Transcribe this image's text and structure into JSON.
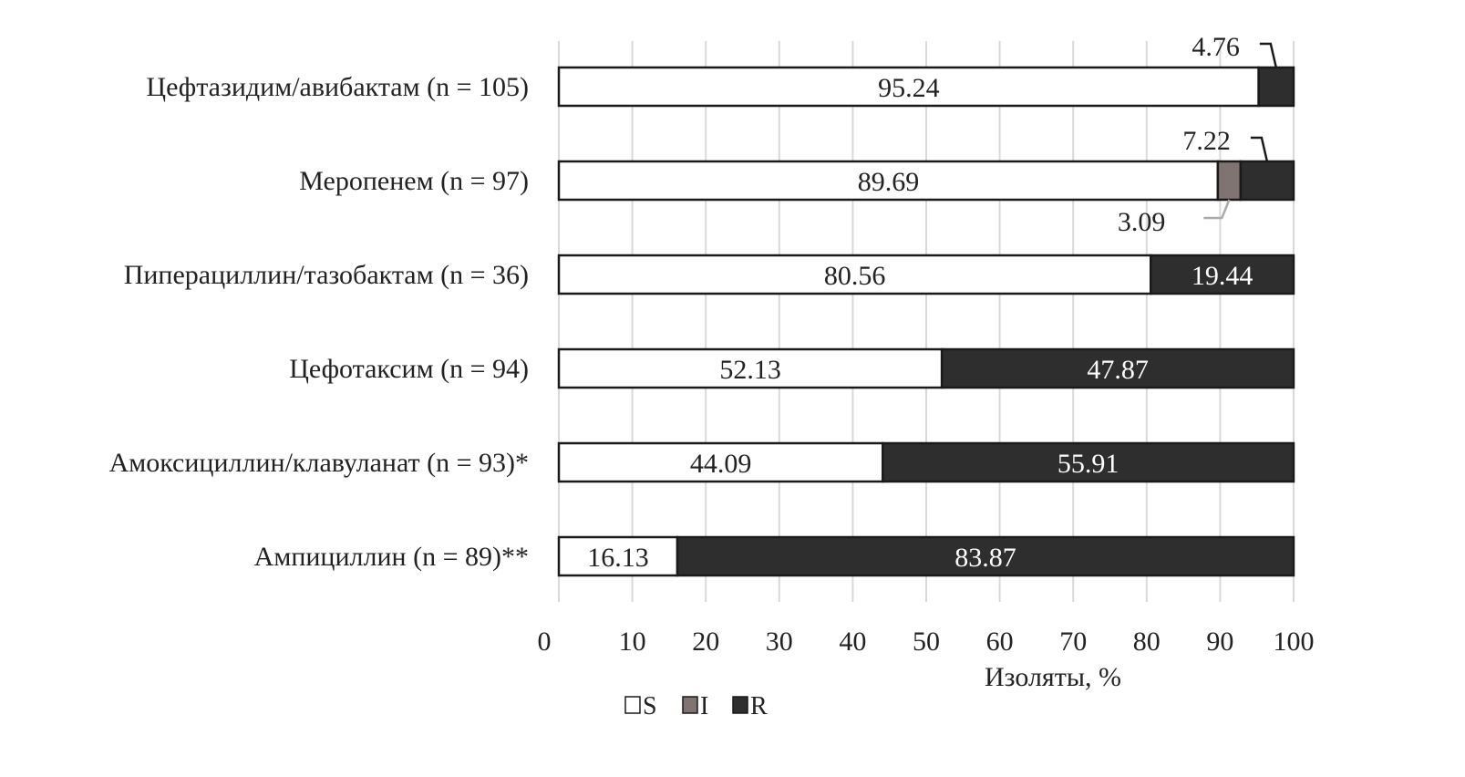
{
  "chart_data": {
    "type": "bar",
    "orientation": "horizontal",
    "stacked": true,
    "categories": [
      "Цефтазидим/авибактам (n = 105)",
      "Меропенем (n = 97)",
      "Пиперациллин/тазобактам (n = 36)",
      "Цефотаксим (n = 94)",
      "Амоксициллин/клавуланат (n = 93)*",
      "Ампициллин (n = 89)**"
    ],
    "series": [
      {
        "name": "S",
        "color": "#ffffff",
        "values": [
          95.24,
          89.69,
          80.56,
          52.13,
          44.09,
          16.13
        ]
      },
      {
        "name": "I",
        "color": "#7f7472",
        "values": [
          0,
          3.09,
          0,
          0,
          0,
          0
        ]
      },
      {
        "name": "R",
        "color": "#2e2e2e",
        "values": [
          4.76,
          7.22,
          19.44,
          47.87,
          55.91,
          83.87
        ]
      }
    ],
    "data_labels": [
      {
        "S": "95.24",
        "I": "",
        "R": "4.76"
      },
      {
        "S": "89.69",
        "I": "3.09",
        "R": "7.22"
      },
      {
        "S": "80.56",
        "I": "",
        "R": "19.44"
      },
      {
        "S": "52.13",
        "I": "",
        "R": "47.87"
      },
      {
        "S": "44.09",
        "I": "",
        "R": "55.91"
      },
      {
        "S": "16.13",
        "I": "",
        "R": "83.87"
      }
    ],
    "xlabel": "Изоляты, %",
    "xlim": [
      0,
      100
    ],
    "xticks": [
      "0",
      "10",
      "20",
      "30",
      "40",
      "50",
      "60",
      "70",
      "80",
      "90",
      "100"
    ],
    "grid": "vertical",
    "legend": {
      "position": "bottom-left",
      "entries": [
        "S",
        "I",
        "R"
      ]
    }
  }
}
